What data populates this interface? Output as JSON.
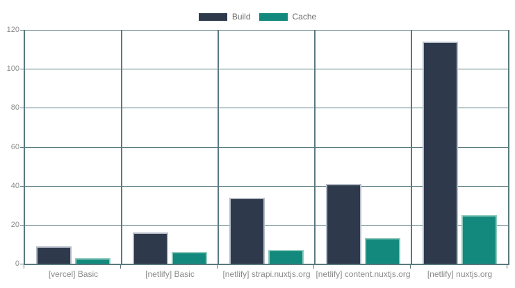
{
  "chart_data": {
    "type": "bar",
    "title": "",
    "xlabel": "",
    "ylabel": "",
    "categories": [
      "[vercel] Basic",
      "[netlify] Basic",
      "[netlify] strapi.nuxtjs.org",
      "[netlify] content.nuxtjs.org",
      "[netlify] nuxtjs.org"
    ],
    "series": [
      {
        "name": "Build",
        "color": "#2e3a4c",
        "border_color": "#b6bdc9",
        "values": [
          9,
          16,
          34,
          41,
          114
        ]
      },
      {
        "name": "Cache",
        "color": "#12897c",
        "border_color": "#8fcabf",
        "values": [
          3,
          6,
          7,
          13,
          25
        ]
      }
    ],
    "ylim": [
      0,
      120
    ],
    "yticks": [
      0,
      20,
      40,
      60,
      80,
      100,
      120
    ],
    "grid": true,
    "legend_position": "top"
  },
  "style": {
    "background": "#ffffff",
    "grid_color": "#587a7f",
    "tick_text_color": "#8a8a8a",
    "legend_text_color": "#6b6b6b"
  }
}
